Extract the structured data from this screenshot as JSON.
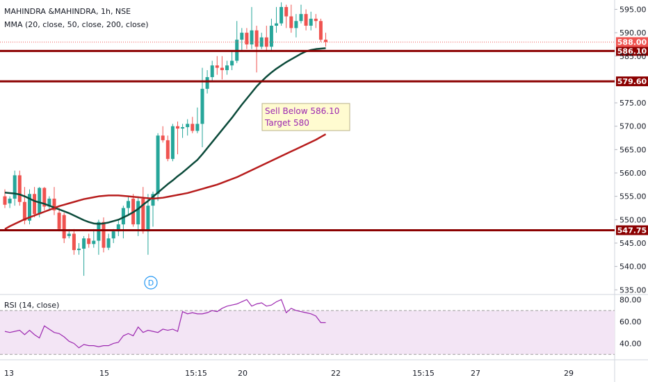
{
  "header": {
    "symbol": "MAHINDRA &MAHINDRA, 1h, NSE",
    "indicator": "MMA (20, close, 50, close, 200, close)",
    "rsi_label": "RSI (14, close)"
  },
  "annotation": {
    "line1": "Sell Below 586.10",
    "line2": "Target 580"
  },
  "earnings_marker": "D",
  "colors": {
    "up": "#26a69a",
    "down": "#ef5350",
    "ma20": "#0b4a3a",
    "ma50": "#b71c1c",
    "level": "#8b0000",
    "rsi": "#9c27b0",
    "rsi_band": "#f3e5f5"
  },
  "chart_data": {
    "type": "candlestick",
    "price_axis": {
      "ylim": [
        534,
        597
      ],
      "ticks": [
        "595.00",
        "590.00",
        "585.00",
        "575.00",
        "570.00",
        "565.00",
        "560.00",
        "555.00",
        "550.00",
        "545.00",
        "540.00",
        "535.00"
      ]
    },
    "time_axis_ticks": [
      "13",
      "15",
      "15:15",
      "20",
      "22",
      "15:15",
      "27",
      "29"
    ],
    "candles": [
      [
        555.0,
        556.5,
        552.5,
        553.2
      ],
      [
        553.5,
        555.0,
        552.5,
        554.5
      ],
      [
        554.5,
        560.5,
        553.0,
        559.5
      ],
      [
        559.5,
        560.5,
        553.0,
        553.8
      ],
      [
        553.8,
        557.0,
        549.0,
        549.8
      ],
      [
        549.8,
        556.5,
        549.0,
        555.5
      ],
      [
        555.5,
        557.0,
        550.5,
        551.2
      ],
      [
        551.2,
        557.0,
        550.5,
        556.8
      ],
      [
        556.8,
        557.0,
        552.0,
        552.8
      ],
      [
        552.8,
        555.0,
        552.0,
        554.5
      ],
      [
        554.5,
        557.0,
        551.0,
        552.0
      ],
      [
        551.5,
        552.5,
        547.5,
        548.0
      ],
      [
        551.0,
        551.5,
        545.0,
        546.0
      ],
      [
        546.5,
        548.0,
        546.0,
        547.0
      ],
      [
        547.0,
        548.0,
        542.5,
        543.5
      ],
      [
        543.5,
        545.0,
        542.5,
        543.8
      ],
      [
        543.8,
        546.5,
        538.0,
        546.0
      ],
      [
        546.0,
        547.0,
        544.0,
        544.8
      ],
      [
        544.8,
        548.0,
        544.0,
        545.5
      ],
      [
        545.5,
        550.0,
        542.5,
        549.5
      ],
      [
        549.5,
        550.5,
        543.0,
        544.0
      ],
      [
        544.0,
        547.0,
        543.5,
        546.0
      ],
      [
        546.0,
        548.0,
        545.0,
        547.5
      ],
      [
        547.5,
        550.0,
        546.5,
        549.0
      ],
      [
        549.0,
        553.0,
        546.0,
        552.5
      ],
      [
        552.5,
        555.0,
        551.0,
        554.0
      ],
      [
        554.5,
        555.5,
        548.5,
        549.0
      ],
      [
        549.0,
        555.0,
        546.5,
        554.0
      ],
      [
        554.5,
        557.0,
        547.0,
        547.5
      ],
      [
        547.5,
        555.5,
        542.5,
        553.0
      ],
      [
        553.0,
        556.0,
        548.5,
        555.5
      ],
      [
        555.5,
        568.5,
        554.0,
        568.0
      ],
      [
        568.0,
        570.0,
        566.5,
        567.0
      ],
      [
        567.0,
        568.0,
        562.5,
        563.0
      ],
      [
        563.0,
        570.5,
        562.5,
        570.0
      ],
      [
        570.0,
        571.0,
        564.0,
        569.5
      ],
      [
        569.5,
        570.5,
        567.5,
        569.8
      ],
      [
        569.8,
        571.5,
        568.0,
        570.5
      ],
      [
        570.5,
        572.0,
        568.5,
        569.0
      ],
      [
        569.0,
        574.0,
        568.5,
        570.5
      ],
      [
        570.5,
        582.5,
        565.5,
        578.0
      ],
      [
        578.0,
        582.0,
        577.0,
        580.5
      ],
      [
        580.5,
        584.0,
        579.5,
        583.0
      ],
      [
        583.0,
        585.0,
        581.0,
        582.5
      ],
      [
        582.5,
        585.0,
        580.0,
        582.0
      ],
      [
        582.0,
        584.0,
        581.0,
        583.0
      ],
      [
        583.0,
        586.0,
        582.0,
        584.0
      ],
      [
        584.0,
        592.5,
        583.5,
        588.5
      ],
      [
        588.5,
        591.0,
        586.0,
        590.0
      ],
      [
        590.0,
        591.0,
        586.5,
        587.5
      ],
      [
        587.5,
        595.5,
        586.5,
        590.5
      ],
      [
        590.5,
        591.5,
        581.5,
        587.0
      ],
      [
        587.0,
        590.0,
        586.5,
        589.0
      ],
      [
        589.0,
        591.5,
        586.0,
        587.0
      ],
      [
        587.0,
        593.0,
        586.0,
        591.5
      ],
      [
        591.5,
        595.5,
        590.0,
        592.0
      ],
      [
        592.0,
        596.5,
        591.5,
        595.5
      ],
      [
        595.5,
        596.0,
        591.0,
        593.5
      ],
      [
        593.5,
        596.0,
        590.0,
        591.0
      ],
      [
        591.0,
        594.0,
        589.0,
        592.5
      ],
      [
        592.5,
        596.0,
        592.0,
        594.0
      ],
      [
        594.0,
        595.0,
        590.5,
        591.5
      ],
      [
        591.5,
        594.5,
        590.5,
        593.0
      ],
      [
        593.0,
        594.0,
        591.0,
        592.5
      ],
      [
        592.5,
        593.0,
        588.0,
        588.5
      ],
      [
        588.5,
        590.0,
        587.0,
        588.0
      ]
    ],
    "series": [
      {
        "name": "MA 20",
        "values": [
          555.8,
          555.7,
          555.6,
          555.4,
          555.0,
          554.5,
          554.0,
          553.7,
          553.4,
          553.0,
          552.6,
          552.2,
          551.8,
          551.4,
          550.9,
          550.4,
          549.9,
          549.5,
          549.2,
          549.1,
          549.2,
          549.4,
          549.7,
          550.0,
          550.5,
          551.0,
          551.6,
          552.3,
          553.2,
          554.0,
          554.9,
          555.8,
          556.7,
          557.6,
          558.4,
          559.3,
          560.1,
          561.0,
          561.9,
          562.8,
          564.0,
          565.3,
          566.6,
          567.9,
          569.2,
          570.5,
          571.8,
          573.2,
          574.6,
          575.9,
          577.2,
          578.5,
          579.6,
          580.6,
          581.5,
          582.3,
          583.0,
          583.7,
          584.3,
          584.9,
          585.5,
          586.0,
          586.3,
          586.5,
          586.6,
          586.7
        ]
      },
      {
        "name": "MA 50",
        "values": [
          548.0,
          548.6,
          549.1,
          549.6,
          550.1,
          550.5,
          550.9,
          551.3,
          551.7,
          552.1,
          552.5,
          552.9,
          553.2,
          553.5,
          553.8,
          554.1,
          554.4,
          554.6,
          554.8,
          555.0,
          555.1,
          555.2,
          555.2,
          555.2,
          555.1,
          555.0,
          554.9,
          554.8,
          554.7,
          554.6,
          554.5,
          554.6,
          554.7,
          554.9,
          555.1,
          555.3,
          555.5,
          555.7,
          556.0,
          556.3,
          556.6,
          556.9,
          557.2,
          557.5,
          557.9,
          558.3,
          558.7,
          559.1,
          559.6,
          560.1,
          560.6,
          561.1,
          561.6,
          562.1,
          562.6,
          563.1,
          563.6,
          564.1,
          564.6,
          565.1,
          565.6,
          566.1,
          566.6,
          567.1,
          567.7,
          568.3
        ]
      }
    ],
    "levels": [
      {
        "price": 586.1,
        "label": "586.10"
      },
      {
        "price": 579.6,
        "label": "579.60"
      },
      {
        "price": 547.75,
        "label": "547.75"
      }
    ],
    "last_price": {
      "price": 588.0,
      "label": "588.00"
    },
    "rsi": {
      "name": "RSI (14, close)",
      "ylim": [
        27,
        84
      ],
      "ticks": [
        "80.00",
        "60.00",
        "40.00"
      ],
      "bands": [
        70,
        30
      ],
      "values": [
        51,
        50,
        51,
        52,
        48,
        52,
        48,
        45,
        56,
        53,
        50,
        49,
        46,
        42,
        40,
        36,
        39,
        38,
        38,
        37,
        38,
        38,
        40,
        41,
        47,
        49,
        47,
        55,
        50,
        52,
        51,
        50,
        53,
        52,
        53,
        51,
        69,
        67,
        68,
        67,
        67,
        68,
        70,
        69,
        72,
        74,
        75,
        76,
        78,
        80,
        74,
        76,
        77,
        74,
        75,
        78,
        80,
        68,
        72,
        70,
        69,
        68,
        67,
        65,
        59,
        59
      ]
    }
  }
}
